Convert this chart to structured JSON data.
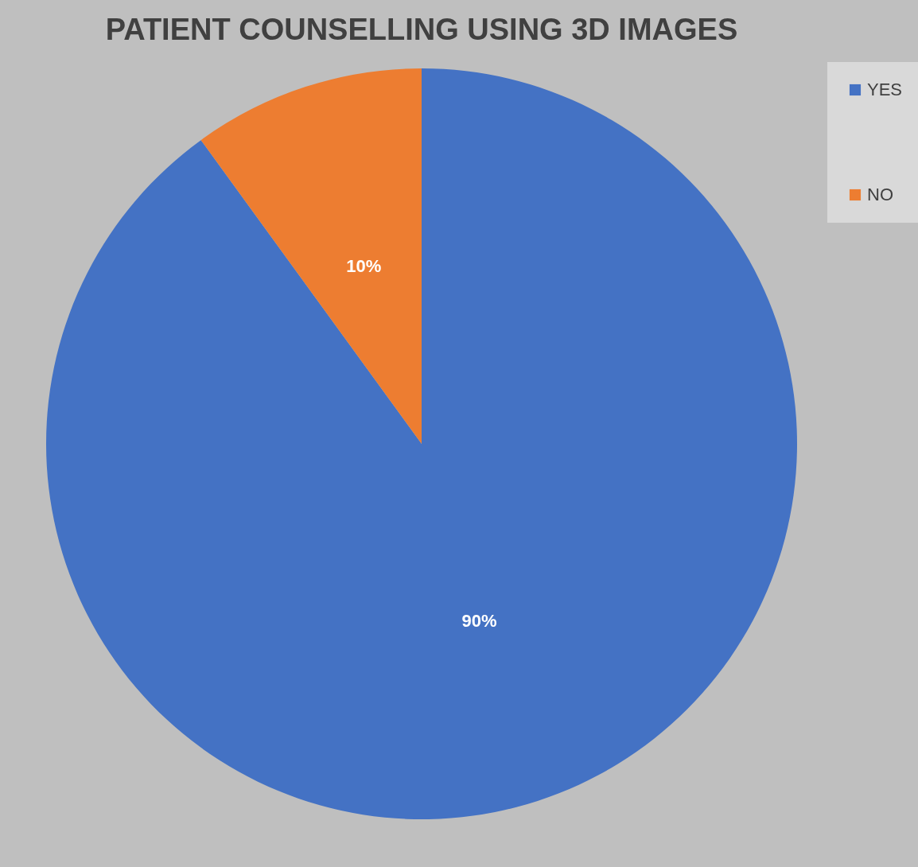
{
  "chart_data": {
    "type": "pie",
    "title": "PATIENT COUNSELLING USING 3D IMAGES",
    "categories": [
      "YES",
      "NO"
    ],
    "values": [
      90,
      10
    ],
    "colors": [
      "#4472c4",
      "#ed7d31"
    ],
    "value_labels": [
      "90%",
      "10%"
    ],
    "legend": "right"
  }
}
